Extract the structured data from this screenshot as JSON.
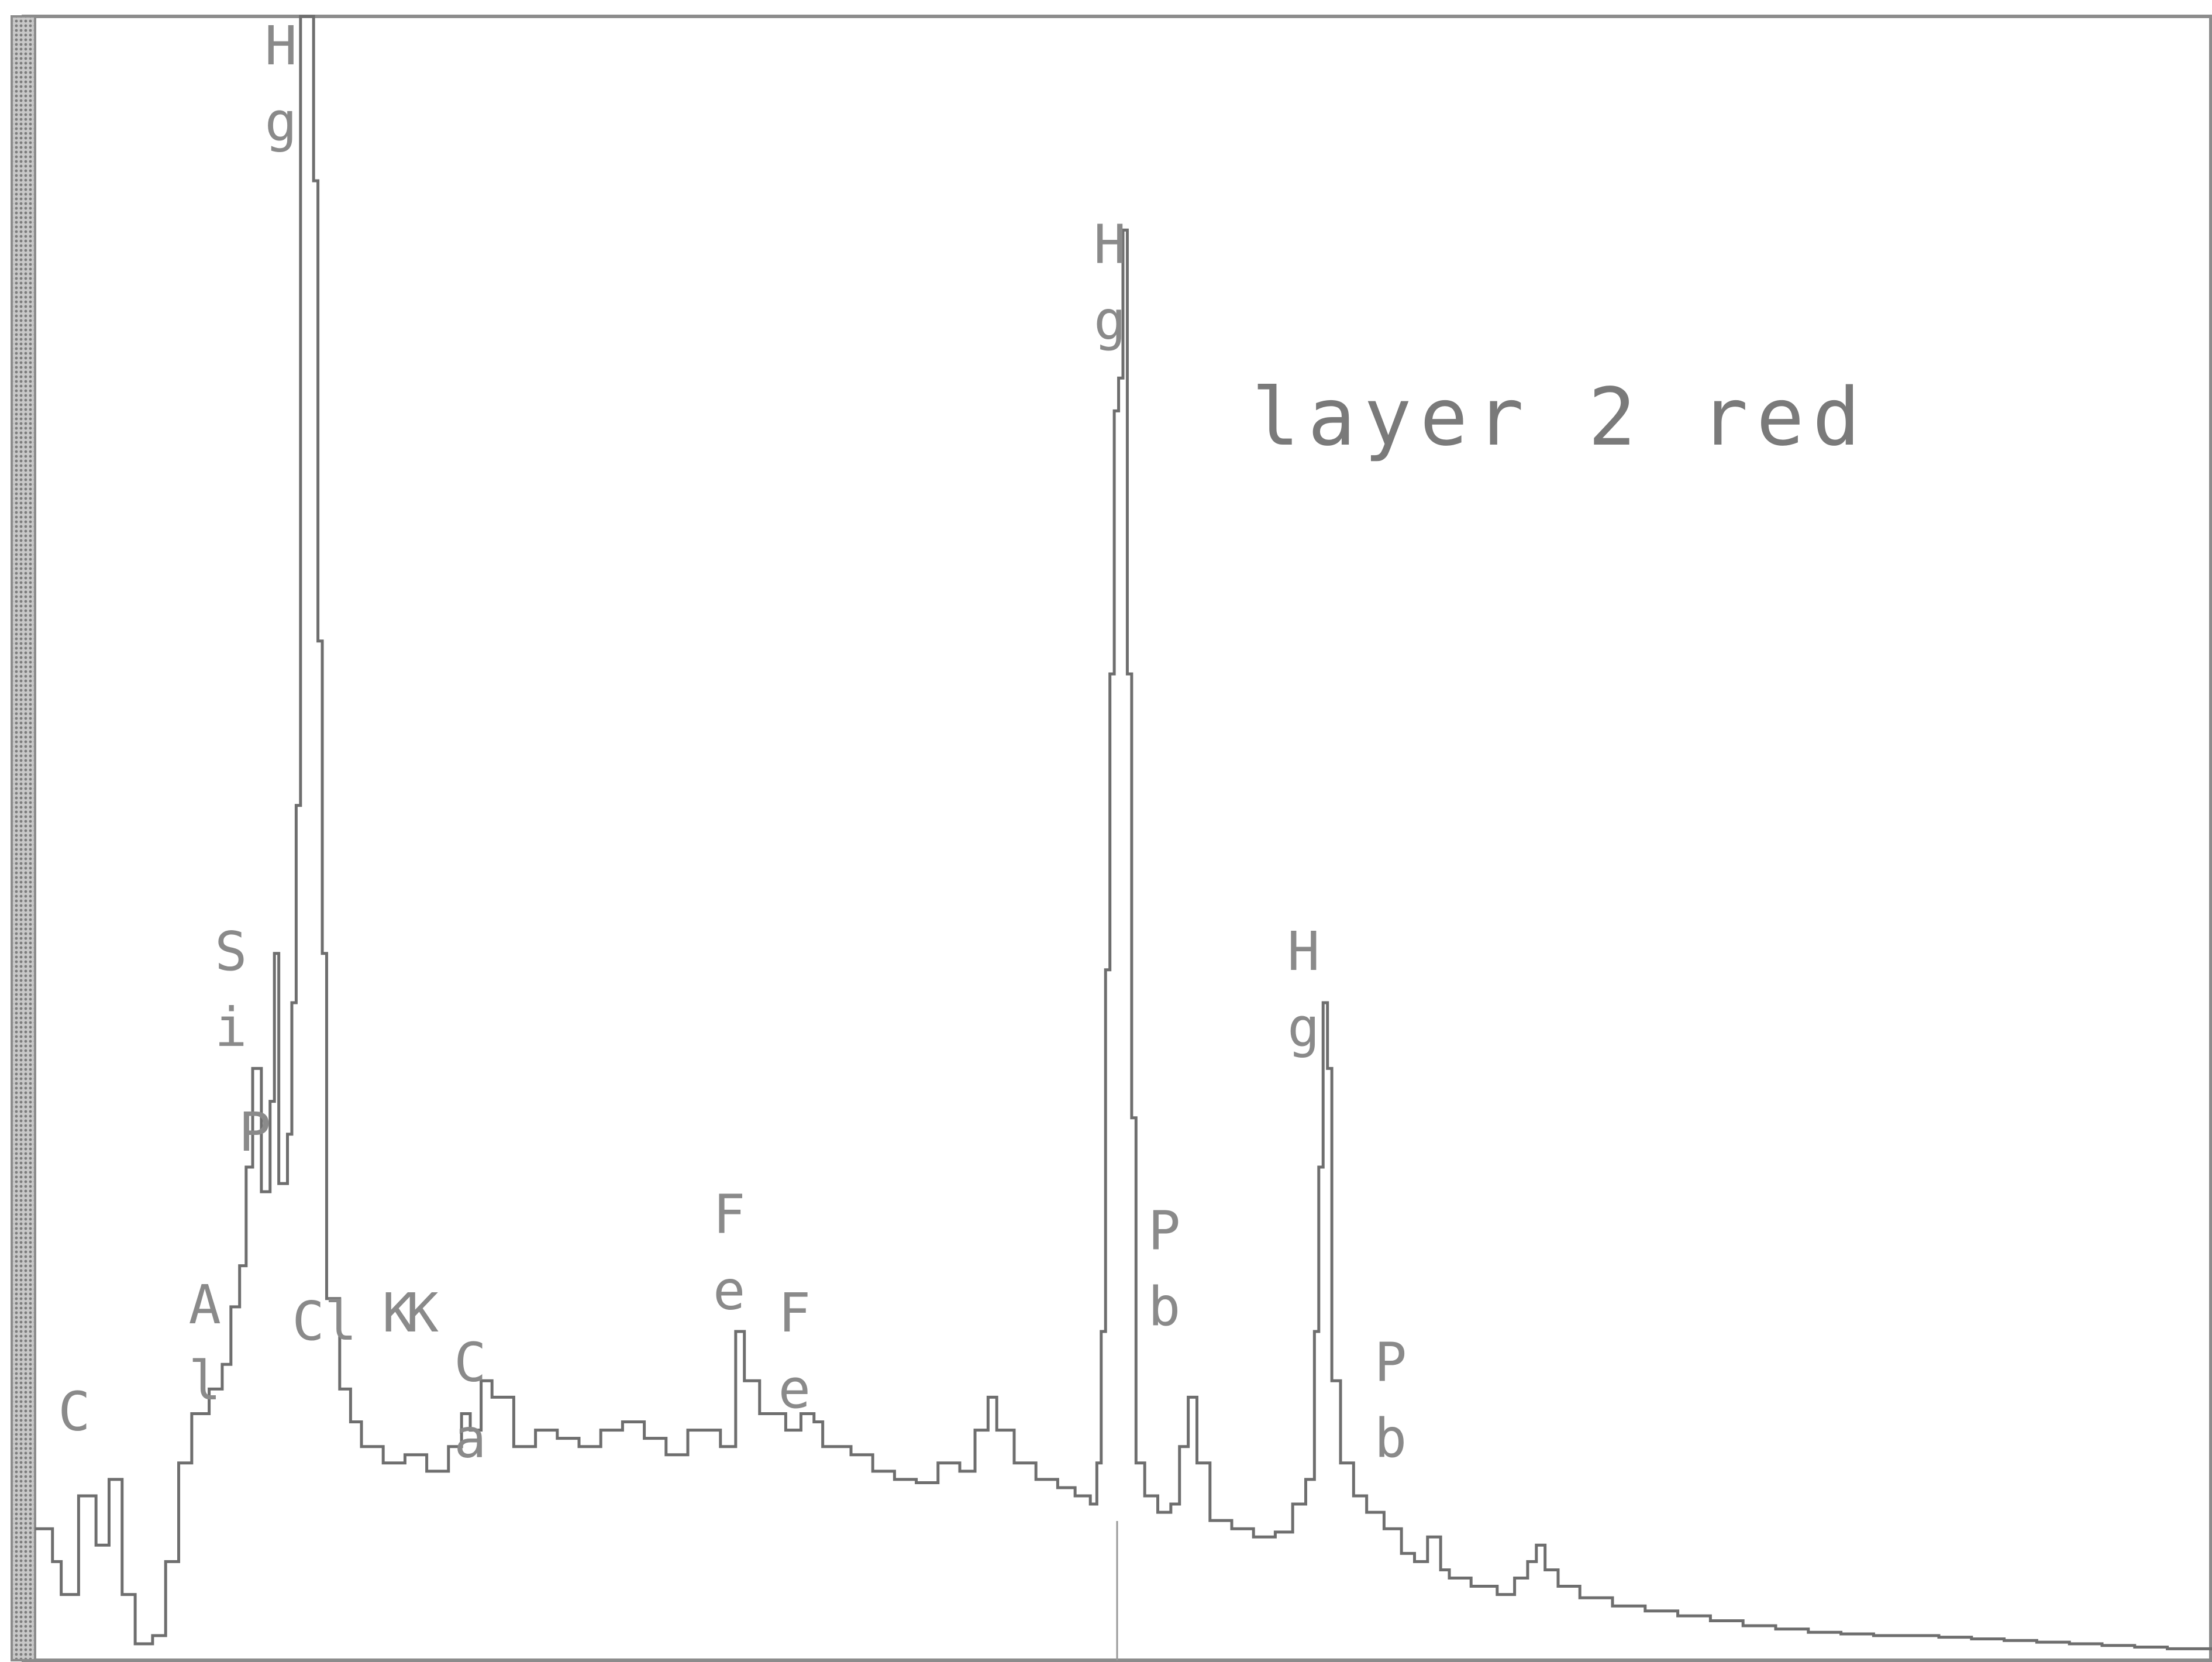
{
  "chart_data": {
    "type": "area",
    "title": "layer 2 red",
    "xlabel": "",
    "ylabel": "",
    "x_range": [
      0,
      1000
    ],
    "ylim": [
      0,
      1000
    ],
    "grid": false,
    "colors": {
      "frame": "#8c8c8c",
      "fill": "#d6d6d6",
      "outline": "#6e6e6e",
      "text": "#8a8a8a"
    },
    "spectrum": [
      [
        0,
        80
      ],
      [
        8,
        60
      ],
      [
        12,
        40
      ],
      [
        20,
        100
      ],
      [
        28,
        70
      ],
      [
        34,
        110
      ],
      [
        40,
        40
      ],
      [
        46,
        10
      ],
      [
        54,
        15
      ],
      [
        60,
        60
      ],
      [
        66,
        120
      ],
      [
        72,
        150
      ],
      [
        80,
        165
      ],
      [
        86,
        180
      ],
      [
        90,
        215
      ],
      [
        94,
        240
      ],
      [
        97,
        300
      ],
      [
        100,
        360
      ],
      [
        104,
        285
      ],
      [
        108,
        340
      ],
      [
        110,
        430
      ],
      [
        112,
        290
      ],
      [
        116,
        320
      ],
      [
        118,
        400
      ],
      [
        120,
        520
      ],
      [
        122,
        1000
      ],
      [
        126,
        1000
      ],
      [
        128,
        900
      ],
      [
        130,
        620
      ],
      [
        132,
        430
      ],
      [
        134,
        220
      ],
      [
        140,
        165
      ],
      [
        145,
        145
      ],
      [
        150,
        130
      ],
      [
        160,
        120
      ],
      [
        170,
        125
      ],
      [
        180,
        115
      ],
      [
        190,
        130
      ],
      [
        196,
        150
      ],
      [
        200,
        140
      ],
      [
        205,
        170
      ],
      [
        210,
        160
      ],
      [
        220,
        130
      ],
      [
        230,
        140
      ],
      [
        240,
        135
      ],
      [
        250,
        130
      ],
      [
        260,
        140
      ],
      [
        270,
        145
      ],
      [
        280,
        135
      ],
      [
        290,
        125
      ],
      [
        300,
        140
      ],
      [
        315,
        130
      ],
      [
        322,
        200
      ],
      [
        326,
        170
      ],
      [
        333,
        150
      ],
      [
        345,
        140
      ],
      [
        352,
        150
      ],
      [
        358,
        145
      ],
      [
        362,
        130
      ],
      [
        375,
        125
      ],
      [
        385,
        115
      ],
      [
        395,
        110
      ],
      [
        405,
        108
      ],
      [
        415,
        120
      ],
      [
        425,
        115
      ],
      [
        432,
        140
      ],
      [
        438,
        160
      ],
      [
        442,
        140
      ],
      [
        450,
        120
      ],
      [
        460,
        110
      ],
      [
        470,
        105
      ],
      [
        478,
        100
      ],
      [
        485,
        95
      ],
      [
        488,
        120
      ],
      [
        490,
        200
      ],
      [
        492,
        420
      ],
      [
        494,
        600
      ],
      [
        496,
        760
      ],
      [
        498,
        780
      ],
      [
        500,
        870
      ],
      [
        502,
        600
      ],
      [
        504,
        330
      ],
      [
        506,
        120
      ],
      [
        510,
        100
      ],
      [
        516,
        90
      ],
      [
        522,
        95
      ],
      [
        526,
        130
      ],
      [
        530,
        160
      ],
      [
        534,
        120
      ],
      [
        540,
        85
      ],
      [
        550,
        80
      ],
      [
        560,
        75
      ],
      [
        570,
        78
      ],
      [
        578,
        95
      ],
      [
        584,
        110
      ],
      [
        588,
        200
      ],
      [
        590,
        300
      ],
      [
        592,
        400
      ],
      [
        594,
        360
      ],
      [
        596,
        170
      ],
      [
        600,
        120
      ],
      [
        606,
        100
      ],
      [
        612,
        90
      ],
      [
        620,
        80
      ],
      [
        628,
        65
      ],
      [
        634,
        60
      ],
      [
        640,
        75
      ],
      [
        646,
        55
      ],
      [
        650,
        50
      ],
      [
        660,
        45
      ],
      [
        672,
        40
      ],
      [
        680,
        50
      ],
      [
        686,
        60
      ],
      [
        690,
        70
      ],
      [
        694,
        55
      ],
      [
        700,
        45
      ],
      [
        710,
        38
      ],
      [
        725,
        33
      ],
      [
        740,
        30
      ],
      [
        755,
        27
      ],
      [
        770,
        24
      ],
      [
        785,
        21
      ],
      [
        800,
        19
      ],
      [
        815,
        17
      ],
      [
        830,
        16
      ],
      [
        845,
        15
      ],
      [
        860,
        15
      ],
      [
        875,
        14
      ],
      [
        890,
        13
      ],
      [
        905,
        12
      ],
      [
        920,
        11
      ],
      [
        935,
        10
      ],
      [
        950,
        9
      ],
      [
        965,
        8
      ],
      [
        980,
        7
      ],
      [
        1000,
        6
      ]
    ],
    "peak_labels": [
      {
        "text": "C",
        "x": 18,
        "y": 140
      },
      {
        "text": "A l",
        "x": 78,
        "y": 205
      },
      {
        "text": "S i",
        "x": 90,
        "y": 420
      },
      {
        "text": "P",
        "x": 101,
        "y": 310
      },
      {
        "text": "H g",
        "x": 113,
        "y": 1060
      },
      {
        "text": "Cl",
        "x": 133,
        "y": 195
      },
      {
        "text": "K",
        "x": 167,
        "y": 200
      },
      {
        "text": "K",
        "x": 178,
        "y": 200
      },
      {
        "text": "C a",
        "x": 200,
        "y": 170
      },
      {
        "text": "F e",
        "x": 319,
        "y": 260
      },
      {
        "text": "F e",
        "x": 349,
        "y": 200
      },
      {
        "text": "H g",
        "x": 494,
        "y": 850
      },
      {
        "text": "P b",
        "x": 519,
        "y": 250
      },
      {
        "text": "H g",
        "x": 583,
        "y": 420
      },
      {
        "text": "P b",
        "x": 623,
        "y": 170
      }
    ]
  }
}
